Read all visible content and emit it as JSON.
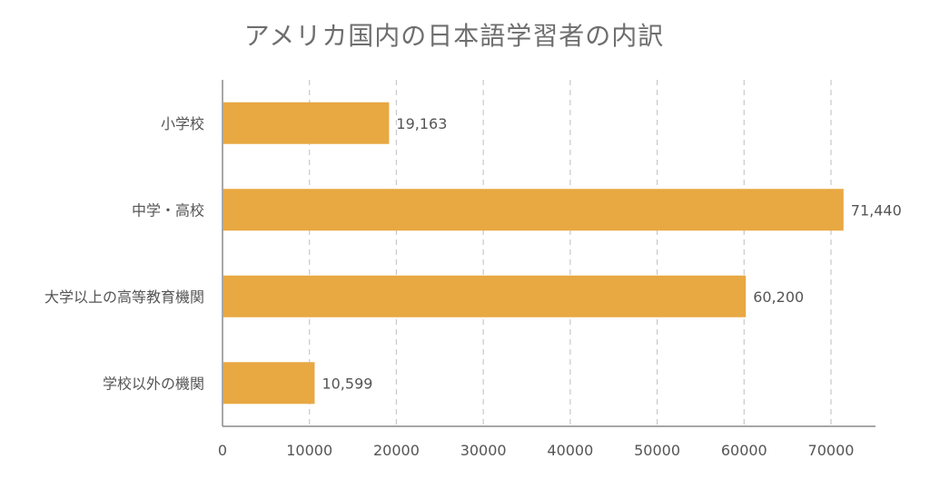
{
  "chart_data": {
    "type": "bar",
    "orientation": "horizontal",
    "title": "アメリカ国内の日本語学習者の内訳",
    "categories": [
      "小学校",
      "中学・高校",
      "大学以上の高等教育機関",
      "学校以外の機関"
    ],
    "values": [
      19163,
      71440,
      60200,
      10599
    ],
    "value_labels": [
      "19,163",
      "71,440",
      "60,200",
      "10,599"
    ],
    "xlim": [
      0,
      75000
    ],
    "x_ticks": [
      0,
      10000,
      20000,
      30000,
      40000,
      50000,
      60000,
      70000
    ],
    "x_tick_labels": [
      "0",
      "10000",
      "20000",
      "30000",
      "40000",
      "50000",
      "60000",
      "70000"
    ],
    "grid": "vertical dashed",
    "bar_color": "#E8A842",
    "legend": "none"
  }
}
